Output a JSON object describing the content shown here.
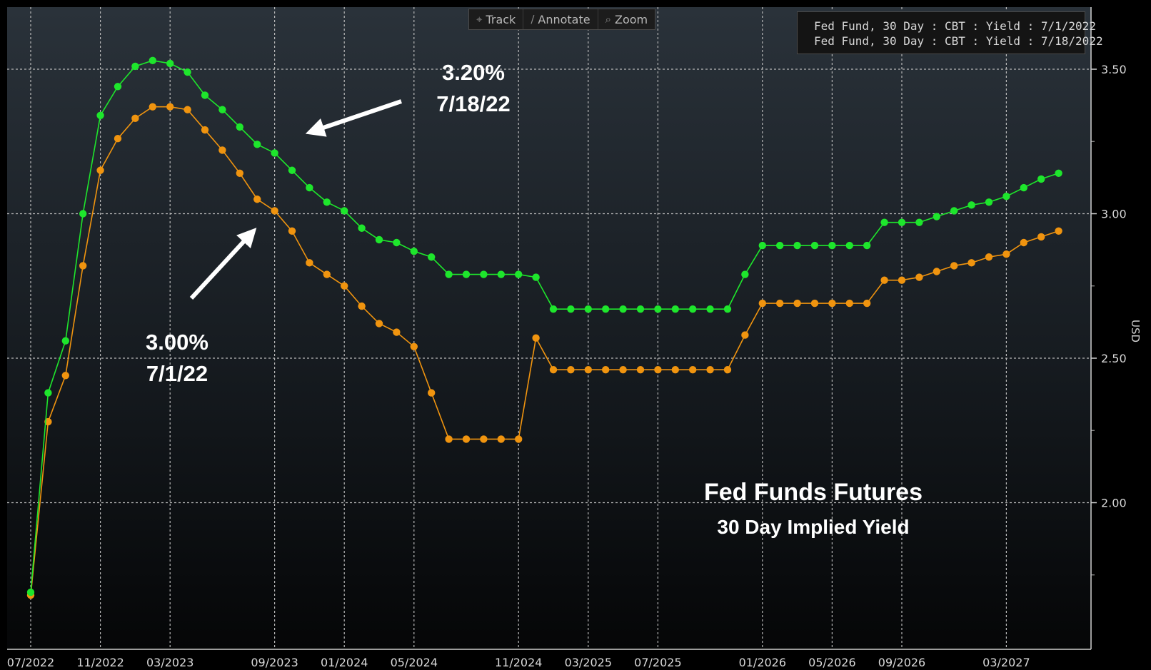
{
  "toolbar": {
    "items": [
      {
        "label": "Track",
        "icon": "crosshair-icon"
      },
      {
        "label": "Annotate",
        "icon": "pencil-icon"
      },
      {
        "label": "Zoom",
        "icon": "magnifier-icon"
      }
    ]
  },
  "legend": {
    "entries": [
      {
        "label": "Fed Fund, 30 Day : CBT : Yield : 7/1/2022",
        "color": "#f0940f"
      },
      {
        "label": "Fed Fund, 30 Day : CBT : Yield : 7/18/2022",
        "color": "#1ee62c"
      }
    ]
  },
  "annotations": {
    "green_callout_value": "3.20%",
    "green_callout_date": "7/18/22",
    "orange_callout_value": "3.00%",
    "orange_callout_date": "7/1/22",
    "title_line1": "Fed Funds Futures",
    "title_line2": "30 Day Implied Yield"
  },
  "chart_data": {
    "type": "line",
    "title": "Fed Funds Futures",
    "subtitle": "30 Day Implied Yield",
    "xlabel": "",
    "ylabel": "USD",
    "ylim": [
      1.5,
      3.7
    ],
    "grid": true,
    "legend_position": "top-right",
    "y_axis_side": "right",
    "y_ticks": [
      "2.00",
      "2.50",
      "3.00",
      "3.50"
    ],
    "x_tick_labels": [
      "07/2022",
      "11/2022",
      "03/2023",
      "09/2023",
      "01/2024",
      "05/2024",
      "11/2024",
      "03/2025",
      "07/2025",
      "01/2026",
      "05/2026",
      "09/2026",
      "03/2027"
    ],
    "x": [
      "07/2022",
      "08/2022",
      "09/2022",
      "10/2022",
      "11/2022",
      "12/2022",
      "01/2023",
      "02/2023",
      "03/2023",
      "04/2023",
      "05/2023",
      "06/2023",
      "07/2023",
      "08/2023",
      "09/2023",
      "10/2023",
      "11/2023",
      "12/2023",
      "01/2024",
      "02/2024",
      "03/2024",
      "04/2024",
      "05/2024",
      "06/2024",
      "07/2024",
      "08/2024",
      "09/2024",
      "10/2024",
      "11/2024",
      "12/2024",
      "01/2025",
      "02/2025",
      "03/2025",
      "04/2025",
      "05/2025",
      "06/2025",
      "07/2025",
      "08/2025",
      "09/2025",
      "10/2025",
      "11/2025",
      "12/2025",
      "01/2026",
      "02/2026",
      "03/2026",
      "04/2026",
      "05/2026",
      "06/2026",
      "07/2026",
      "08/2026",
      "09/2026",
      "10/2026",
      "11/2026",
      "12/2026",
      "01/2027",
      "02/2027",
      "03/2027",
      "04/2027",
      "05/2027",
      "06/2027"
    ],
    "series": [
      {
        "name": "Fed Fund, 30 Day : CBT : Yield : 7/1/2022",
        "color": "#f0940f",
        "values": [
          1.68,
          2.28,
          2.44,
          2.82,
          3.15,
          3.26,
          3.33,
          3.37,
          3.37,
          3.36,
          3.29,
          3.22,
          3.14,
          3.05,
          3.01,
          2.94,
          2.83,
          2.79,
          2.75,
          2.68,
          2.62,
          2.59,
          2.54,
          2.38,
          2.22,
          2.22,
          2.22,
          2.22,
          2.22,
          2.57,
          2.46,
          2.46,
          2.46,
          2.46,
          2.46,
          2.46,
          2.46,
          2.46,
          2.46,
          2.46,
          2.46,
          2.58,
          2.69,
          2.69,
          2.69,
          2.69,
          2.69,
          2.69,
          2.69,
          2.77,
          2.77,
          2.78,
          2.8,
          2.82,
          2.83,
          2.85,
          2.86,
          2.9,
          2.92,
          2.94
        ]
      },
      {
        "name": "Fed Fund, 30 Day : CBT : Yield : 7/18/2022",
        "color": "#1ee62c",
        "values": [
          1.69,
          2.38,
          2.56,
          3.0,
          3.34,
          3.44,
          3.51,
          3.53,
          3.52,
          3.49,
          3.41,
          3.36,
          3.3,
          3.24,
          3.21,
          3.15,
          3.09,
          3.04,
          3.01,
          2.95,
          2.91,
          2.9,
          2.87,
          2.85,
          2.79,
          2.79,
          2.79,
          2.79,
          2.79,
          2.78,
          2.67,
          2.67,
          2.67,
          2.67,
          2.67,
          2.67,
          2.67,
          2.67,
          2.67,
          2.67,
          2.67,
          2.79,
          2.89,
          2.89,
          2.89,
          2.89,
          2.89,
          2.89,
          2.89,
          2.97,
          2.97,
          2.97,
          2.99,
          3.01,
          3.03,
          3.04,
          3.06,
          3.09,
          3.12,
          3.14
        ]
      }
    ]
  }
}
